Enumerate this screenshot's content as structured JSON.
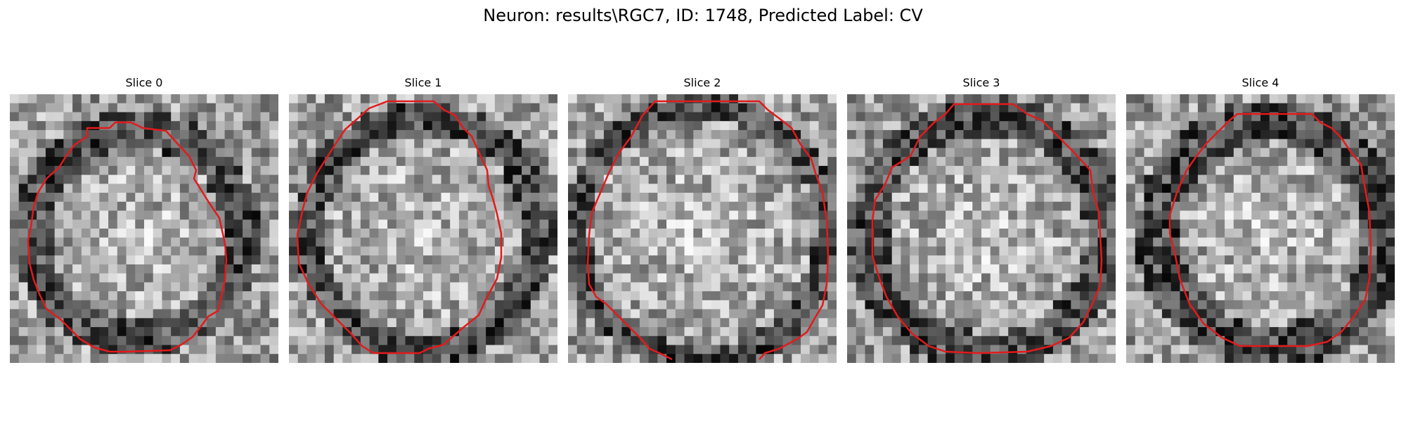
{
  "figure": {
    "title": "Neuron: results\\RGC7, ID: 1748, Predicted Label: CV"
  },
  "panels": [
    {
      "title": "Slice 0"
    },
    {
      "title": "Slice 1"
    },
    {
      "title": "Slice 2"
    },
    {
      "title": "Slice 3"
    },
    {
      "title": "Slice 4"
    }
  ],
  "colors": {
    "contour": "#e31a1c",
    "colormap": "gray"
  }
}
